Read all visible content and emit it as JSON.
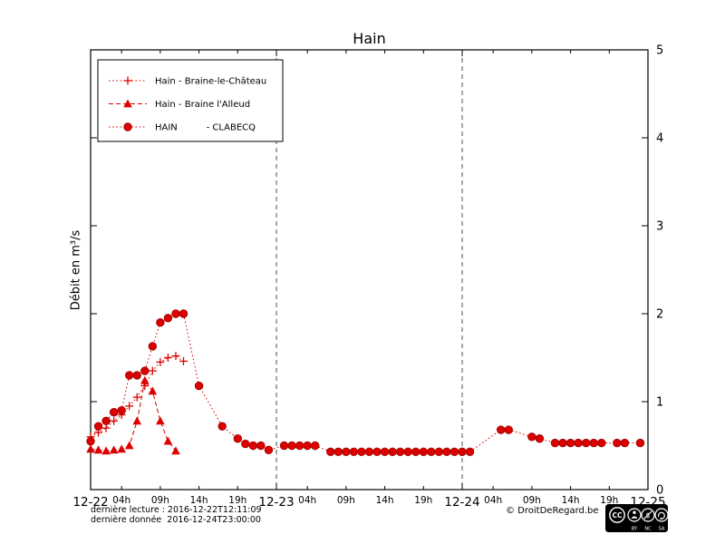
{
  "title": "Hain",
  "ylabel": "Débit en m³/s",
  "footer": {
    "last_reading": "dernière lecture : 2016-12-22T12:11:09",
    "last_data": "dernière donnée  2016-12-24T23:00:00",
    "copyright": "© DroitDeRegard.be",
    "cc": {
      "logo": "CC",
      "by": "BY",
      "nc": "NC",
      "sa": "SA"
    }
  },
  "chart_data": {
    "type": "line",
    "title": "Hain",
    "xlabel": "",
    "ylabel": "Débit en m³/s",
    "x_unit": "hours from 2016-12-22 00:00",
    "xlim": [
      0,
      72
    ],
    "ylim": [
      0,
      5
    ],
    "y_ticks": [
      0,
      1,
      2,
      3,
      4,
      5
    ],
    "grid_vlines": [
      24,
      48
    ],
    "legend_position": "top-left",
    "color": "#dd0000",
    "day_ticks": [
      {
        "t": 0,
        "label": "12-22"
      },
      {
        "t": 24,
        "label": "12-23"
      },
      {
        "t": 48,
        "label": "12-24"
      },
      {
        "t": 72,
        "label": "12-25"
      }
    ],
    "hour_ticks": [
      {
        "t": 4,
        "label": "04h"
      },
      {
        "t": 9,
        "label": "09h"
      },
      {
        "t": 14,
        "label": "14h"
      },
      {
        "t": 19,
        "label": "19h"
      },
      {
        "t": 28,
        "label": "04h"
      },
      {
        "t": 33,
        "label": "09h"
      },
      {
        "t": 38,
        "label": "14h"
      },
      {
        "t": 43,
        "label": "19h"
      },
      {
        "t": 52,
        "label": "04h"
      },
      {
        "t": 57,
        "label": "09h"
      },
      {
        "t": 62,
        "label": "14h"
      },
      {
        "t": 67,
        "label": "19h"
      }
    ],
    "series": [
      {
        "name": "Hain - Braine-le-Château",
        "marker": "plus",
        "line": "dotted",
        "points": [
          [
            0,
            0.6
          ],
          [
            1,
            0.65
          ],
          [
            2,
            0.7
          ],
          [
            3,
            0.78
          ],
          [
            4,
            0.85
          ],
          [
            5,
            0.95
          ],
          [
            6,
            1.05
          ],
          [
            7,
            1.18
          ],
          [
            8,
            1.35
          ],
          [
            9,
            1.45
          ],
          [
            10,
            1.5
          ],
          [
            11,
            1.52
          ],
          [
            12,
            1.46
          ]
        ]
      },
      {
        "name": "Hain - Braine l'Alleud",
        "marker": "triangle",
        "line": "dashed",
        "points": [
          [
            0,
            0.46
          ],
          [
            1,
            0.45
          ],
          [
            2,
            0.44
          ],
          [
            3,
            0.45
          ],
          [
            4,
            0.46
          ],
          [
            5,
            0.5
          ],
          [
            6,
            0.78
          ],
          [
            7,
            1.24
          ],
          [
            8,
            1.12
          ],
          [
            9,
            0.78
          ],
          [
            10,
            0.55
          ],
          [
            11,
            0.44
          ]
        ]
      },
      {
        "name": "HAIN          - CLABECQ",
        "marker": "circle",
        "line": "dotted",
        "points": [
          [
            0,
            0.55
          ],
          [
            1,
            0.72
          ],
          [
            2,
            0.78
          ],
          [
            3,
            0.88
          ],
          [
            4,
            0.9
          ],
          [
            5,
            1.3
          ],
          [
            6,
            1.3
          ],
          [
            7,
            1.35
          ],
          [
            8,
            1.63
          ],
          [
            9,
            1.9
          ],
          [
            10,
            1.95
          ],
          [
            11,
            2.0
          ],
          [
            12,
            2.0
          ],
          [
            14,
            1.18
          ],
          [
            17,
            0.72
          ],
          [
            19,
            0.58
          ],
          [
            20,
            0.52
          ],
          [
            21,
            0.5
          ],
          [
            22,
            0.5
          ],
          [
            23,
            0.45
          ],
          [
            25,
            0.5
          ],
          [
            26,
            0.5
          ],
          [
            27,
            0.5
          ],
          [
            28,
            0.5
          ],
          [
            29,
            0.5
          ],
          [
            31,
            0.43
          ],
          [
            32,
            0.43
          ],
          [
            33,
            0.43
          ],
          [
            34,
            0.43
          ],
          [
            35,
            0.43
          ],
          [
            36,
            0.43
          ],
          [
            37,
            0.43
          ],
          [
            38,
            0.43
          ],
          [
            39,
            0.43
          ],
          [
            40,
            0.43
          ],
          [
            41,
            0.43
          ],
          [
            42,
            0.43
          ],
          [
            43,
            0.43
          ],
          [
            44,
            0.43
          ],
          [
            45,
            0.43
          ],
          [
            46,
            0.43
          ],
          [
            47,
            0.43
          ],
          [
            48,
            0.43
          ],
          [
            49,
            0.43
          ],
          [
            53,
            0.68
          ],
          [
            54,
            0.68
          ],
          [
            57,
            0.6
          ],
          [
            58,
            0.58
          ],
          [
            60,
            0.53
          ],
          [
            61,
            0.53
          ],
          [
            62,
            0.53
          ],
          [
            63,
            0.53
          ],
          [
            64,
            0.53
          ],
          [
            65,
            0.53
          ],
          [
            66,
            0.53
          ],
          [
            68,
            0.53
          ],
          [
            69,
            0.53
          ],
          [
            71,
            0.53
          ]
        ]
      }
    ]
  }
}
